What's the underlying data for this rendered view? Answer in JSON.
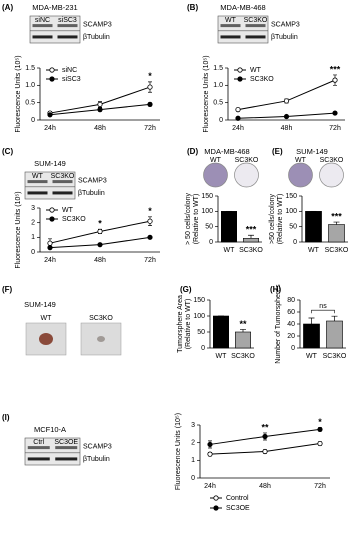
{
  "panels": [
    {
      "label": "(A)",
      "title": "MDA-MB-231",
      "lanes": [
        "siNC",
        "siSC3"
      ],
      "bands": [
        "SCAMP3",
        "βTubulin"
      ]
    },
    {
      "label": "(B)",
      "title": "MDA-MB-468",
      "lanes": [
        "WT",
        "SC3KO"
      ],
      "bands": [
        "SCAMP3",
        "βTubulin"
      ]
    },
    {
      "label": "(C)",
      "title": "SUM-149",
      "lanes": [
        "WT",
        "SC3KO"
      ],
      "bands": [
        "SCAMP3",
        "βTubulin"
      ]
    },
    {
      "label": "(D)",
      "title": "MDA-MB-468",
      "lanes": [
        "WT",
        "SC3KO"
      ]
    },
    {
      "label": "(E)",
      "title": "SUM-149",
      "lanes": [
        "WT",
        "SC3KO"
      ]
    },
    {
      "label": "(F)",
      "title": "SUM-149",
      "lanes": [
        "WT",
        "SC3KO"
      ]
    },
    {
      "label": "(G)"
    },
    {
      "label": "(H)"
    },
    {
      "label": "(I)",
      "title": "MCF10-A",
      "lanes": [
        "Ctrl",
        "SC3OE"
      ],
      "bands": [
        "SCAMP3",
        "βTubulin"
      ]
    }
  ],
  "chart_data": [
    {
      "type": "line",
      "categories": [
        "24h",
        "48h",
        "72h"
      ],
      "y_label": "Fluorescence Units (10⁵)",
      "ylim": [
        0,
        1.5
      ],
      "yticks": [
        0,
        0.5,
        {
          "value": 1,
          "label": "1.0"
        },
        1.5
      ],
      "legend": "upper left",
      "series": [
        {
          "name": "siNC",
          "color": "#000000",
          "marker": "open",
          "values": [
            0.2,
            0.45,
            0.95
          ],
          "errors": [
            0.05,
            0.08,
            0.15
          ]
        },
        {
          "name": "siSC3",
          "color": "#000000",
          "marker": "filled",
          "values": [
            0.15,
            0.3,
            0.45
          ],
          "errors": [
            0.03,
            0.05,
            0.05
          ]
        }
      ],
      "annotations": [
        {
          "text": "*",
          "category": "72h"
        }
      ]
    },
    {
      "type": "line",
      "categories": [
        "24h",
        "48h",
        "72h"
      ],
      "y_label": "Fluorescence Units (10⁵)",
      "ylim": [
        0,
        1.5
      ],
      "yticks": [
        0,
        0.5,
        {
          "value": 1,
          "label": "1.0"
        },
        1.5
      ],
      "legend": "upper left",
      "series": [
        {
          "name": "WT",
          "color": "#000000",
          "marker": "open",
          "values": [
            0.3,
            0.55,
            1.15
          ],
          "errors": [
            0.04,
            0.06,
            0.15
          ]
        },
        {
          "name": "SC3KO",
          "color": "#000000",
          "marker": "filled",
          "values": [
            0.05,
            0.1,
            0.2
          ],
          "errors": [
            0.02,
            0.02,
            0.03
          ]
        }
      ],
      "annotations": [
        {
          "text": "***",
          "category": "72h"
        }
      ]
    },
    {
      "type": "line",
      "categories": [
        "24h",
        "48h",
        "72h"
      ],
      "y_label": "Fluorescence Units (10⁵)",
      "ylim": [
        0,
        3
      ],
      "yticks": [
        0,
        1,
        2,
        3
      ],
      "legend": "upper left",
      "series": [
        {
          "name": "WT",
          "color": "#000000",
          "marker": "open",
          "values": [
            0.6,
            1.4,
            2.1
          ],
          "errors": [
            0.3,
            0.15,
            0.3
          ]
        },
        {
          "name": "SC3KO",
          "color": "#000000",
          "marker": "filled",
          "values": [
            0.3,
            0.5,
            1.0
          ],
          "errors": [
            0.1,
            0.05,
            0.05
          ]
        }
      ],
      "annotations": [
        {
          "text": "*",
          "category": "48h"
        },
        {
          "text": "*",
          "category": "72h"
        }
      ]
    },
    {
      "type": "bar",
      "categories": [
        "WT",
        "SC3KO"
      ],
      "values": [
        100,
        12
      ],
      "errors": [
        0,
        10
      ],
      "colors": [
        "#000000",
        "#a6a6a6"
      ],
      "y_label": [
        "> 50 cells/colony",
        "(Relative to WT)"
      ],
      "ylim": [
        0,
        150
      ],
      "yticks": [
        0,
        50,
        100,
        150
      ],
      "annotations": [
        {
          "text": "***",
          "category": "SC3KO"
        }
      ]
    },
    {
      "type": "bar",
      "categories": [
        "WT",
        "SC3KO"
      ],
      "values": [
        100,
        57
      ],
      "errors": [
        0,
        8
      ],
      "colors": [
        "#000000",
        "#a6a6a6"
      ],
      "y_label": [
        ">50 cells/colony",
        "(Relative to WT)"
      ],
      "ylim": [
        0,
        150
      ],
      "yticks": [
        0,
        50,
        100,
        150
      ],
      "annotations": [
        {
          "text": "***",
          "category": "SC3KO"
        }
      ]
    },
    {
      "type": "bar",
      "categories": [
        "WT",
        "SC3KO"
      ],
      "values": [
        100,
        50
      ],
      "errors": [
        0,
        8
      ],
      "colors": [
        "#000000",
        "#a6a6a6"
      ],
      "y_label": [
        "Tumorsphere Area",
        "(Relative to WT)"
      ],
      "ylim": [
        0,
        150
      ],
      "yticks": [
        0,
        50,
        100,
        150
      ],
      "annotations": [
        {
          "text": "**",
          "category": "SC3KO"
        }
      ]
    },
    {
      "type": "bar",
      "categories": [
        "WT",
        "SC3KO"
      ],
      "values": [
        40,
        45
      ],
      "errors": [
        10,
        8
      ],
      "colors": [
        "#000000",
        "#a6a6a6"
      ],
      "y_label": [
        "Number of Tumorspheres"
      ],
      "ylim": [
        0,
        80
      ],
      "yticks": [
        0,
        20,
        40,
        60,
        80
      ],
      "annotations": [
        {
          "text": "ns",
          "span": [
            "WT",
            "SC3KO"
          ]
        }
      ]
    },
    {
      "type": "line",
      "categories": [
        "24h",
        "48h",
        "72h"
      ],
      "y_label": "Fluorescence Units (10⁵)",
      "ylim": [
        0,
        3
      ],
      "yticks": [
        0,
        1,
        2,
        3
      ],
      "legend": "below",
      "series": [
        {
          "name": "Control",
          "color": "#000000",
          "marker": "open",
          "values": [
            1.35,
            1.5,
            1.95
          ],
          "errors": [
            0.1,
            0.1,
            0.1
          ]
        },
        {
          "name": "SC3OE",
          "color": "#000000",
          "marker": "filled",
          "values": [
            1.9,
            2.35,
            2.75
          ],
          "errors": [
            0.2,
            0.2,
            0.1
          ]
        }
      ],
      "annotations": [
        {
          "text": "**",
          "category": "48h"
        },
        {
          "text": "*",
          "category": "72h"
        }
      ]
    }
  ]
}
